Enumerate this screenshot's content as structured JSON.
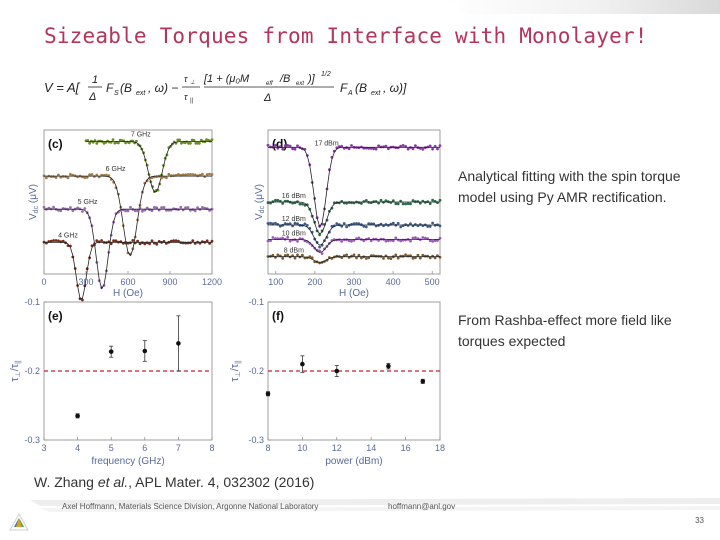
{
  "slide": {
    "title": "Sizeable Torques from Interface with Monolayer!",
    "notes": [
      "Analytical fitting with the spin torque model using Py AMR rectification.",
      "From Rashba-effect more field like torques expected"
    ],
    "citation_prefix": "W. Zhang ",
    "citation_etal": "et al.",
    "citation_rest": ", APL Mater. 4, 032302 (2016)",
    "footer_left": "Axel Hoffmann, Materials Science Division, Argonne National Laboratory",
    "footer_email": "hoffmann@anl.gov",
    "page_number": "33",
    "accent_color": "#b4345a"
  },
  "formula": {
    "lhs": "V = A[",
    "frac1_num": "1",
    "frac1_den": "Δ",
    "fs": "F",
    "fs_sub": "S",
    "args1": "(B",
    "args1_sub": "ext",
    "args1_end": ", ω) −",
    "tau_perp": "τ",
    "perp": "⊥",
    "tau_par": "τ",
    "par": "||",
    "bracket_num": "[1 + (μ₀M",
    "eff": "eff",
    "bracket_num_end": "/B",
    "ext": "ext",
    "bracket_close": ")]",
    "exponent": "1/2",
    "frac2_den": "Δ",
    "fa": "F",
    "fa_sub": "A",
    "args2": "(B",
    "args2_sub": "ext",
    "args2_end": ", ω)]"
  },
  "chart_data": [
    {
      "type": "scatter",
      "panel": "(c)",
      "xlabel": "H (Oe)",
      "ylabel": "V",
      "ylabel_sub": "dc",
      "ylabel_unit": " (μV)",
      "xticks": [
        0,
        300,
        600,
        900,
        1200
      ],
      "xlim": [
        0,
        1200
      ],
      "series": [
        {
          "name": "7 GHz",
          "color": "#6b8a2a",
          "baseline": 0.92,
          "dip_x": 800,
          "dip_depth": 0.35,
          "dip_width": 70,
          "x_start": 300
        },
        {
          "name": "6 GHz",
          "color": "#a07c4a",
          "baseline": 0.68,
          "dip_x": 620,
          "dip_depth": 0.55,
          "dip_width": 70,
          "x_start": 0
        },
        {
          "name": "5 GHz",
          "color": "#9a6ab2",
          "baseline": 0.45,
          "dip_x": 420,
          "dip_depth": 0.55,
          "dip_width": 60,
          "x_start": 0
        },
        {
          "name": "4 GHz",
          "color": "#7a2a1a",
          "baseline": 0.22,
          "dip_x": 270,
          "dip_depth": 0.4,
          "dip_width": 50,
          "x_start": 0
        }
      ]
    },
    {
      "type": "scatter",
      "panel": "(d)",
      "xlabel": "H (Oe)",
      "ylabel": "V",
      "ylabel_sub": "dc",
      "ylabel_unit": " (μV)",
      "xticks": [
        100,
        200,
        300,
        400,
        500
      ],
      "xlim": [
        80,
        520
      ],
      "series": [
        {
          "name": "17 dBm",
          "color": "#8a3aa8",
          "baseline": 0.88,
          "dip_x": 215,
          "dip_depth": 0.55,
          "dip_width": 22
        },
        {
          "name": "16 dBm",
          "color": "#2a6a4a",
          "baseline": 0.5,
          "dip_x": 215,
          "dip_depth": 0.22,
          "dip_width": 22
        },
        {
          "name": "12 dBm",
          "color": "#3a5a8a",
          "baseline": 0.34,
          "dip_x": 215,
          "dip_depth": 0.14,
          "dip_width": 22
        },
        {
          "name": "10 dBm",
          "color": "#9a5ab8",
          "baseline": 0.24,
          "dip_x": 215,
          "dip_depth": 0.09,
          "dip_width": 22
        },
        {
          "name": "8 dBm",
          "color": "#7a5a2a",
          "baseline": 0.12,
          "dip_x": 215,
          "dip_depth": 0.04,
          "dip_width": 22
        }
      ]
    },
    {
      "type": "scatter",
      "panel": "(e)",
      "xlabel": "frequency (GHz)",
      "ylabel": "τ",
      "ylabel_sub1": "⊥",
      "ylabel_mid": "/τ",
      "ylabel_sub2": "||",
      "xticks": [
        3,
        4,
        5,
        6,
        7,
        8
      ],
      "yticks": [
        -0.1,
        -0.2,
        -0.3
      ],
      "xlim": [
        3,
        8
      ],
      "ylim": [
        -0.3,
        -0.1
      ],
      "reference_line": -0.2,
      "points": [
        {
          "x": 4,
          "y": -0.265,
          "err": 0.003
        },
        {
          "x": 5,
          "y": -0.172,
          "err": 0.008
        },
        {
          "x": 6,
          "y": -0.171,
          "err": 0.015
        },
        {
          "x": 7,
          "y": -0.16,
          "err": 0.04
        }
      ]
    },
    {
      "type": "scatter",
      "panel": "(f)",
      "xlabel": "power (dBm)",
      "xticks": [
        8,
        10,
        12,
        14,
        16,
        18
      ],
      "yticks": [
        -0.1,
        -0.2,
        -0.3
      ],
      "xlim": [
        8,
        18
      ],
      "ylim": [
        -0.3,
        -0.1
      ],
      "reference_line": -0.2,
      "points": [
        {
          "x": 8,
          "y": -0.233,
          "err": 0.003
        },
        {
          "x": 10,
          "y": -0.19,
          "err": 0.012
        },
        {
          "x": 12,
          "y": -0.2,
          "err": 0.008
        },
        {
          "x": 15,
          "y": -0.193,
          "err": 0.004
        },
        {
          "x": 17,
          "y": -0.215,
          "err": 0.003
        }
      ]
    }
  ]
}
